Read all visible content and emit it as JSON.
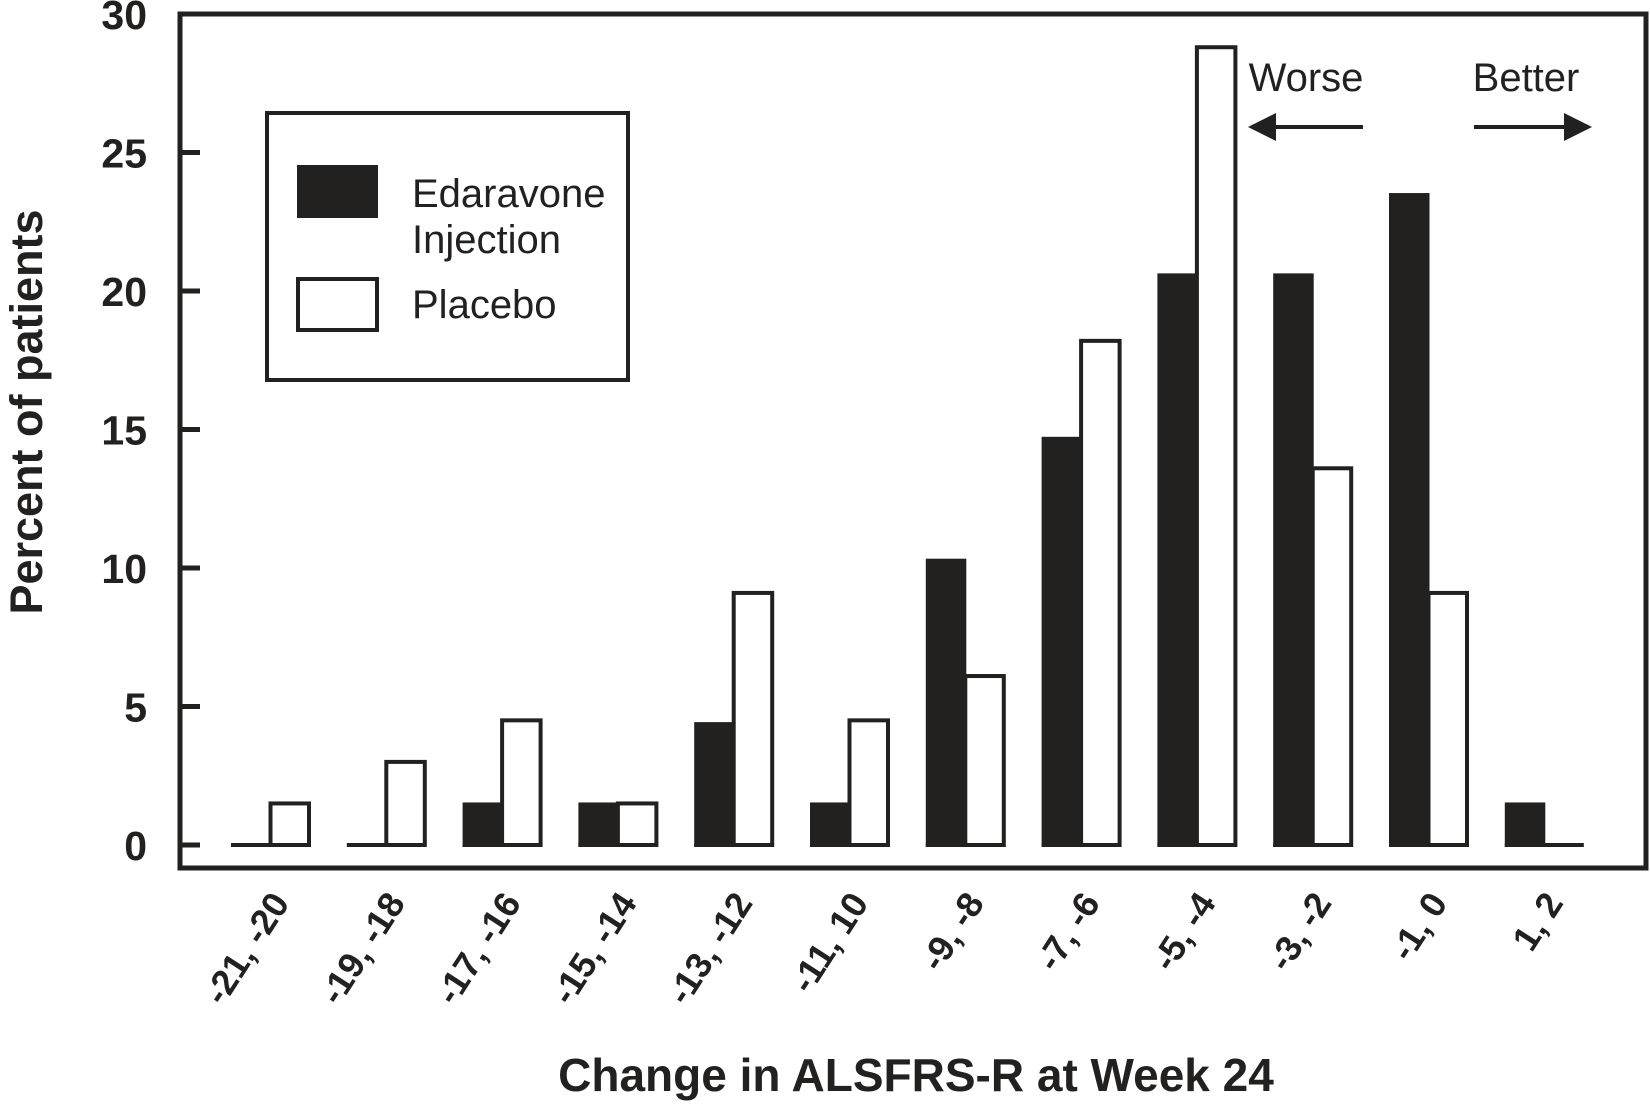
{
  "figure": {
    "background": "#ffffff",
    "ink_color": "#232020"
  },
  "chart_data": {
    "type": "bar",
    "title": "",
    "xlabel": "Change in ALSFRS-R at Week 24",
    "ylabel": "Percent of patients",
    "categories": [
      "-21, -20",
      "-19, -18",
      "-17, -16",
      "-15, -14",
      "-13, -12",
      "-11, 10",
      "-9, -8",
      "-7, -6",
      "-5, -4",
      "-3, -2",
      "-1, 0",
      "1, 2"
    ],
    "series": [
      {
        "name": "Edaravone Injection",
        "style": "filled-black",
        "values": [
          0,
          0,
          1.5,
          1.5,
          4.4,
          1.5,
          10.3,
          14.7,
          20.6,
          20.6,
          23.5,
          1.5
        ]
      },
      {
        "name": "Placebo",
        "style": "white-outlined",
        "values": [
          1.5,
          3.0,
          4.5,
          1.5,
          9.1,
          4.5,
          6.1,
          18.2,
          28.8,
          13.6,
          9.1,
          0
        ]
      }
    ],
    "ylim": [
      0,
      30
    ],
    "yticks": [
      0,
      5,
      10,
      15,
      20,
      25,
      30
    ],
    "grid": false,
    "legend_position": "upper-left",
    "legend_labels": [
      [
        "Edaravone",
        "Injection"
      ],
      [
        "Placebo"
      ]
    ],
    "annotations": [
      {
        "text": "Worse",
        "arrow": "left"
      },
      {
        "text": "Better",
        "arrow": "right"
      }
    ]
  }
}
